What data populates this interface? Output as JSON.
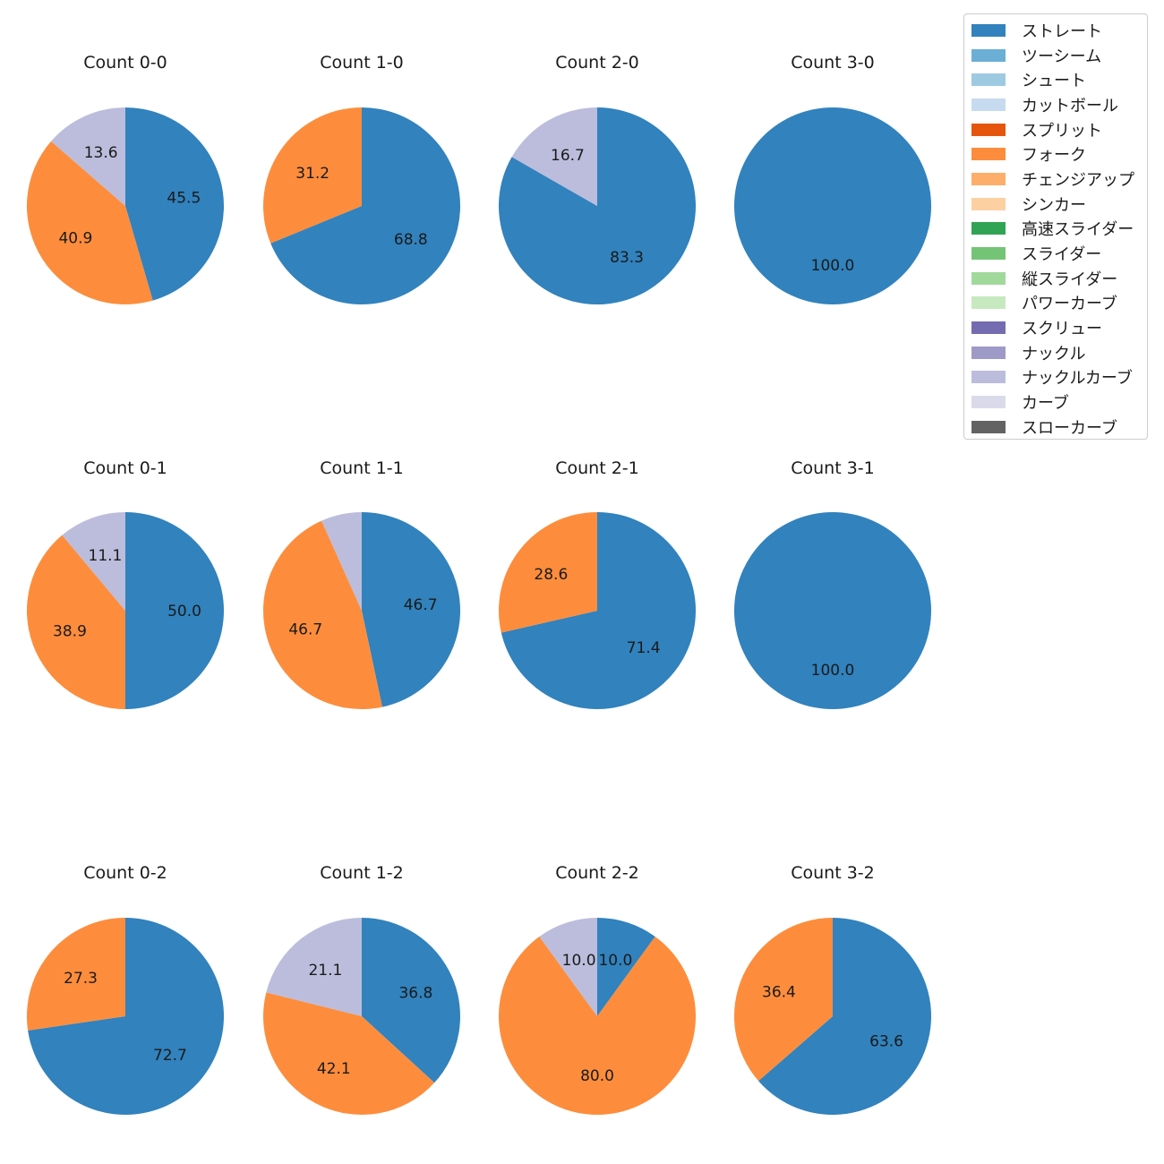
{
  "chart_data": [
    {
      "type": "pie",
      "title": "Count 0-0",
      "slices": [
        {
          "label": "ストレート",
          "value": 45.5
        },
        {
          "label": "フォーク",
          "value": 40.9
        },
        {
          "label": "ナックルカーブ",
          "value": 13.6
        }
      ]
    },
    {
      "type": "pie",
      "title": "Count 1-0",
      "slices": [
        {
          "label": "ストレート",
          "value": 68.8
        },
        {
          "label": "フォーク",
          "value": 31.2
        }
      ]
    },
    {
      "type": "pie",
      "title": "Count 2-0",
      "slices": [
        {
          "label": "ストレート",
          "value": 83.3
        },
        {
          "label": "ナックルカーブ",
          "value": 16.7
        }
      ]
    },
    {
      "type": "pie",
      "title": "Count 3-0",
      "slices": [
        {
          "label": "ストレート",
          "value": 100.0
        }
      ]
    },
    {
      "type": "pie",
      "title": "Count 0-1",
      "slices": [
        {
          "label": "ストレート",
          "value": 50.0
        },
        {
          "label": "フォーク",
          "value": 38.9
        },
        {
          "label": "ナックルカーブ",
          "value": 11.1
        }
      ]
    },
    {
      "type": "pie",
      "title": "Count 1-1",
      "slices": [
        {
          "label": "ストレート",
          "value": 46.7
        },
        {
          "label": "フォーク",
          "value": 46.7
        },
        {
          "label": "ナックルカーブ",
          "value": 6.7,
          "hide_label": true
        }
      ]
    },
    {
      "type": "pie",
      "title": "Count 2-1",
      "slices": [
        {
          "label": "ストレート",
          "value": 71.4
        },
        {
          "label": "フォーク",
          "value": 28.6
        }
      ]
    },
    {
      "type": "pie",
      "title": "Count 3-1",
      "slices": [
        {
          "label": "ストレート",
          "value": 100.0
        }
      ]
    },
    {
      "type": "pie",
      "title": "Count 0-2",
      "slices": [
        {
          "label": "ストレート",
          "value": 72.7
        },
        {
          "label": "フォーク",
          "value": 27.3
        }
      ]
    },
    {
      "type": "pie",
      "title": "Count 1-2",
      "slices": [
        {
          "label": "ストレート",
          "value": 36.8
        },
        {
          "label": "フォーク",
          "value": 42.1
        },
        {
          "label": "ナックルカーブ",
          "value": 21.1
        }
      ]
    },
    {
      "type": "pie",
      "title": "Count 2-2",
      "slices": [
        {
          "label": "ストレート",
          "value": 10.0
        },
        {
          "label": "フォーク",
          "value": 80.0
        },
        {
          "label": "ナックルカーブ",
          "value": 10.0
        }
      ]
    },
    {
      "type": "pie",
      "title": "Count 3-2",
      "slices": [
        {
          "label": "ストレート",
          "value": 63.6
        },
        {
          "label": "フォーク",
          "value": 36.4
        }
      ]
    }
  ],
  "legend": [
    {
      "label": "ストレート",
      "color": "#3182bd"
    },
    {
      "label": "ツーシーム",
      "color": "#6baed6"
    },
    {
      "label": "シュート",
      "color": "#9ecae1"
    },
    {
      "label": "カットボール",
      "color": "#c6dbef"
    },
    {
      "label": "スプリット",
      "color": "#e6550d"
    },
    {
      "label": "フォーク",
      "color": "#fd8d3c"
    },
    {
      "label": "チェンジアップ",
      "color": "#fdae6b"
    },
    {
      "label": "シンカー",
      "color": "#fdd0a2"
    },
    {
      "label": "高速スライダー",
      "color": "#31a354"
    },
    {
      "label": "スライダー",
      "color": "#74c476"
    },
    {
      "label": "縦スライダー",
      "color": "#a1d99b"
    },
    {
      "label": "パワーカーブ",
      "color": "#c7e9c0"
    },
    {
      "label": "スクリュー",
      "color": "#756bb1"
    },
    {
      "label": "ナックル",
      "color": "#9e9ac8"
    },
    {
      "label": "ナックルカーブ",
      "color": "#bcbddc"
    },
    {
      "label": "カーブ",
      "color": "#dadaeb"
    },
    {
      "label": "スローカーブ",
      "color": "#636363"
    }
  ]
}
